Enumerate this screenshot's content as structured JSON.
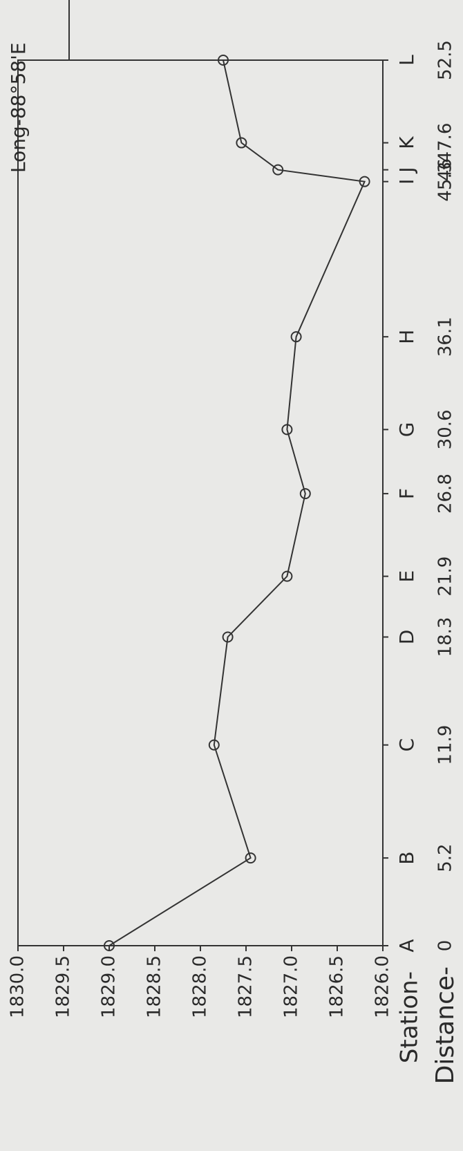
{
  "chart_data": {
    "type": "line",
    "annotation": "Long-88°58'E",
    "station_label": "Station-",
    "xlabel": "Distance-",
    "stations": [
      "A",
      "B",
      "C",
      "D",
      "E",
      "F",
      "G",
      "H",
      "I",
      "J",
      "K",
      "L"
    ],
    "x": [
      0,
      5.2,
      11.9,
      18.3,
      21.9,
      26.8,
      30.6,
      36.1,
      45.3,
      46,
      47.6,
      52.5
    ],
    "series": [
      {
        "color": "#333333",
        "values": [
          1829.0,
          1827.45,
          1827.85,
          1827.7,
          1827.05,
          1826.85,
          1827.05,
          1826.95,
          1826.2,
          1827.15,
          1827.55,
          1827.75
        ]
      }
    ],
    "xlim": [
      0,
      52.5
    ],
    "ylim": [
      1826.0,
      1830.0
    ],
    "yticks": [
      {
        "value": 1826,
        "label": "1826.0"
      },
      1826.5,
      {
        "value": 1827,
        "label": "1827.0"
      },
      1827.5,
      {
        "value": 1828,
        "label": "1828.0"
      },
      1828.5,
      {
        "value": 1829,
        "label": "1829.0"
      },
      1829.5,
      {
        "value": 1830,
        "label": "1830.0"
      }
    ]
  }
}
